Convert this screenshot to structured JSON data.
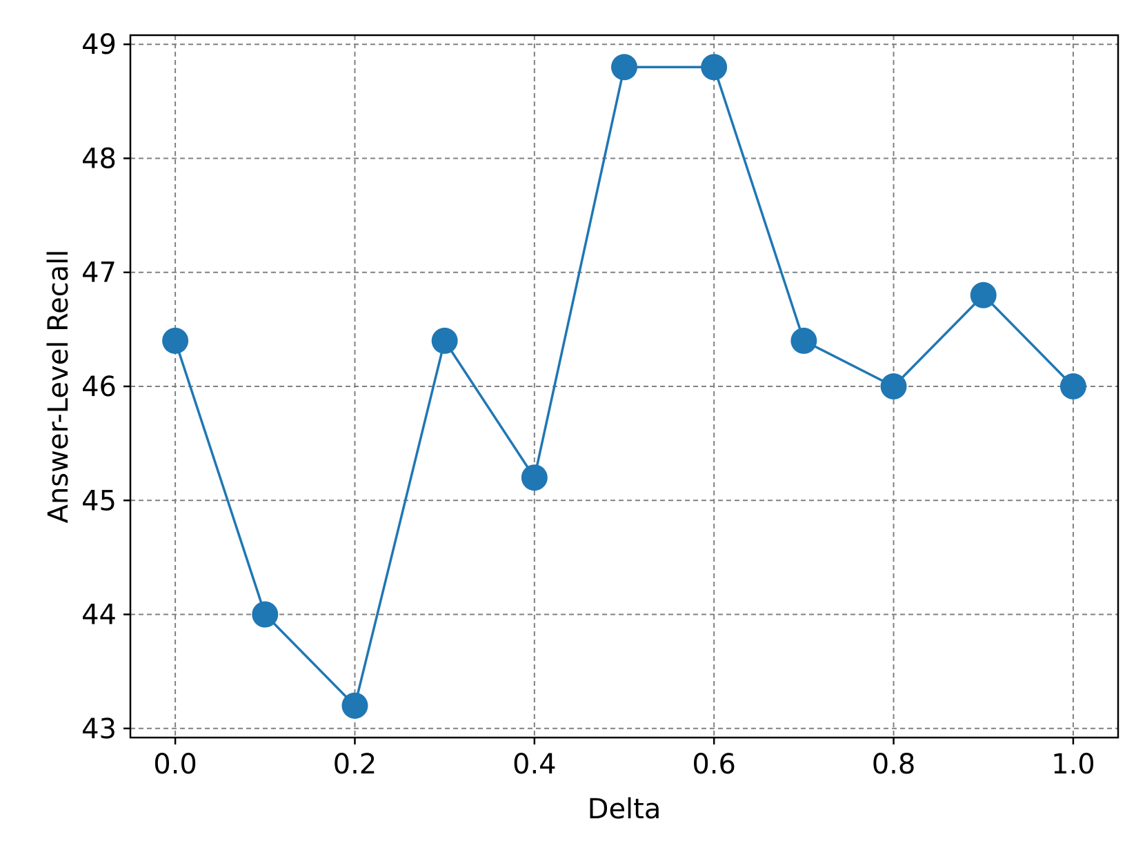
{
  "chart_data": {
    "type": "line",
    "title": "",
    "xlabel": "Delta",
    "ylabel": "Answer-Level Recall",
    "x": [
      0.0,
      0.1,
      0.2,
      0.3,
      0.4,
      0.5,
      0.6,
      0.7,
      0.8,
      0.9,
      1.0
    ],
    "series": [
      {
        "values": [
          46.4,
          44.0,
          43.2,
          46.4,
          45.2,
          48.8,
          48.8,
          46.4,
          46.0,
          46.8,
          46.0
        ],
        "color": "#1f77b4",
        "marker": "circle"
      }
    ],
    "xlim": [
      -0.05,
      1.05
    ],
    "ylim": [
      42.92,
      49.08
    ],
    "xticks": [
      "0.0",
      "0.2",
      "0.4",
      "0.6",
      "0.8",
      "1.0"
    ],
    "yticks": [
      "43",
      "44",
      "45",
      "46",
      "47",
      "48",
      "49"
    ],
    "grid": true,
    "grid_style": "dashed",
    "grid_color": "#808080",
    "legend": "none"
  }
}
